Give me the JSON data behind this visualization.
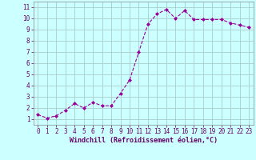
{
  "x": [
    0,
    1,
    2,
    3,
    4,
    5,
    6,
    7,
    8,
    9,
    10,
    11,
    12,
    13,
    14,
    15,
    16,
    17,
    18,
    19,
    20,
    21,
    22,
    23
  ],
  "y": [
    1.4,
    1.1,
    1.3,
    1.8,
    2.4,
    2.0,
    2.5,
    2.2,
    2.2,
    3.3,
    4.5,
    7.0,
    9.5,
    10.4,
    10.8,
    10.0,
    10.7,
    9.9,
    9.9,
    9.9,
    9.9,
    9.6,
    9.4,
    9.2
  ],
  "line_color": "#990099",
  "marker": "D",
  "marker_size": 2.0,
  "bg_color": "#ccffff",
  "grid_color": "#aacccc",
  "xlabel": "Windchill (Refroidissement éolien,°C)",
  "xlabel_color": "#660066",
  "tick_color": "#660066",
  "label_color": "#660066",
  "xlim": [
    -0.5,
    23.5
  ],
  "ylim": [
    0.5,
    11.5
  ],
  "yticks": [
    1,
    2,
    3,
    4,
    5,
    6,
    7,
    8,
    9,
    10,
    11
  ],
  "xticks": [
    0,
    1,
    2,
    3,
    4,
    5,
    6,
    7,
    8,
    9,
    10,
    11,
    12,
    13,
    14,
    15,
    16,
    17,
    18,
    19,
    20,
    21,
    22,
    23
  ],
  "tick_fontsize": 5.5,
  "xlabel_fontsize": 6.0
}
